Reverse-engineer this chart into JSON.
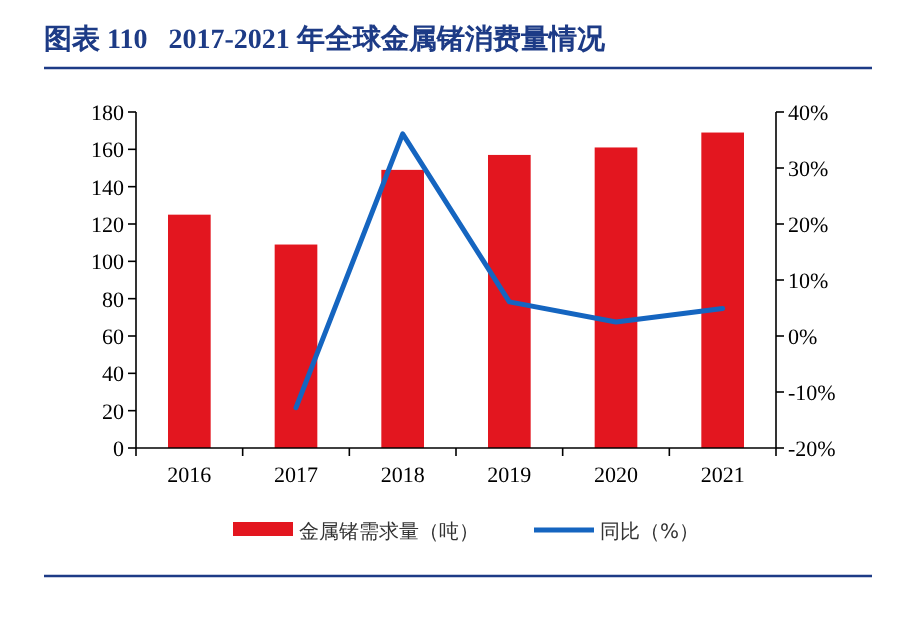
{
  "chart_data": {
    "type": "bar",
    "title": "图表 110   2017-2021 年全球金属锗消费量情况",
    "categories": [
      "2016",
      "2017",
      "2018",
      "2019",
      "2020",
      "2021"
    ],
    "series": [
      {
        "name": "金属锗需求量（吨）",
        "color": "#e3161f",
        "values": [
          125,
          109,
          149,
          157,
          161,
          169
        ]
      },
      {
        "name": "同比（%）",
        "type": "line",
        "axis": "y2",
        "color": "#1565c0",
        "values": [
          null,
          -12.8,
          36.1,
          6.1,
          2.5,
          4.9
        ]
      }
    ],
    "ylim": [
      0,
      180
    ],
    "yticks": [
      0,
      20,
      40,
      60,
      80,
      100,
      120,
      140,
      160,
      180
    ],
    "y2lim": [
      -20,
      40
    ],
    "y2ticks": [
      {
        "value": -20,
        "label": "-20%"
      },
      {
        "value": -10,
        "label": "-10%"
      },
      {
        "value": 0,
        "label": "0%"
      },
      {
        "value": 10,
        "label": "10%"
      },
      {
        "value": 20,
        "label": "20%"
      },
      {
        "value": 30,
        "label": "30%"
      },
      {
        "value": 40,
        "label": "40%"
      }
    ],
    "grid": false,
    "legend": "bottom"
  }
}
